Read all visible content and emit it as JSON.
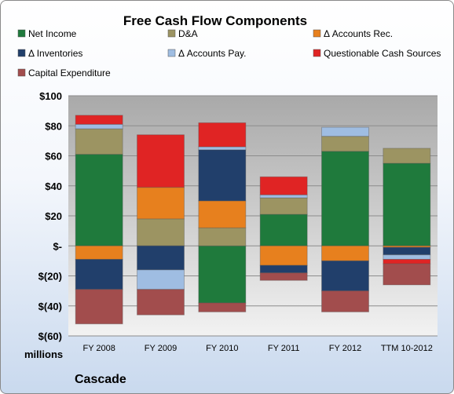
{
  "chart_data": {
    "type": "bar",
    "stacked": true,
    "title": "Free Cash Flow Components",
    "categories": [
      "FY 2008",
      "FY 2009",
      "FY 2010",
      "FY 2011",
      "FY 2012",
      "TTM 10-2012"
    ],
    "ylim": [
      -60,
      100
    ],
    "yticks": [
      100,
      80,
      60,
      40,
      20,
      0,
      -20,
      -40,
      -60
    ],
    "ytick_labels": [
      "$100",
      "$80",
      "$60",
      "$40",
      "$20",
      "$-",
      "$(20)",
      "$(40)",
      "$(60)"
    ],
    "unit_label": "millions",
    "grid": true,
    "legend_position": "top",
    "series": [
      {
        "name": "Net Income",
        "color": "#1f7a3c",
        "values": [
          61,
          0,
          -38,
          21,
          63,
          55
        ]
      },
      {
        "name": "D&A",
        "color": "#9c9462",
        "values": [
          17,
          18,
          12,
          11,
          10,
          10
        ]
      },
      {
        "name": "Δ Accounts Rec.",
        "color": "#e7801e",
        "values": [
          -9,
          21,
          18,
          -13,
          -10,
          -1
        ]
      },
      {
        "name": "Δ Inventories",
        "color": "#213f6b",
        "values": [
          -20,
          -16,
          34,
          -5,
          -20,
          -5
        ]
      },
      {
        "name": "Δ Accounts Pay.",
        "color": "#9fbde2",
        "values": [
          3,
          -13,
          2,
          2,
          6,
          -3
        ]
      },
      {
        "name": "Questionable Cash Sources",
        "color": "#e02424",
        "values": [
          6,
          35,
          16,
          12,
          0,
          -3
        ]
      },
      {
        "name": "Capital Expenditure",
        "color": "#a24d4d",
        "values": [
          -23,
          -17,
          -6,
          -5,
          -14,
          -14
        ]
      }
    ]
  },
  "footer": {
    "company": "Cascade"
  }
}
